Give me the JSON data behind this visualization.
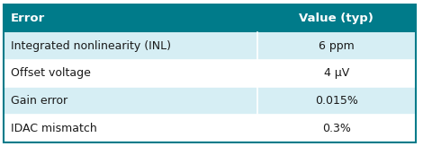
{
  "header": [
    "Error",
    "Value (typ)"
  ],
  "rows": [
    [
      "Integrated nonlinearity (INL)",
      "6 ppm"
    ],
    [
      "Offset voltage",
      "4 μV"
    ],
    [
      "Gain error",
      "0.015%"
    ],
    [
      "IDAC mismatch",
      "0.3%"
    ]
  ],
  "header_bg": "#007b8a",
  "header_text_color": "#ffffff",
  "row_bg_odd": "#d6eef4",
  "row_bg_even": "#ffffff",
  "text_color": "#1a1a1a",
  "divider_color": "#ffffff",
  "outer_border_color": "#007b8a",
  "col_split": 0.615,
  "header_fontsize": 9.5,
  "row_fontsize": 9.0
}
